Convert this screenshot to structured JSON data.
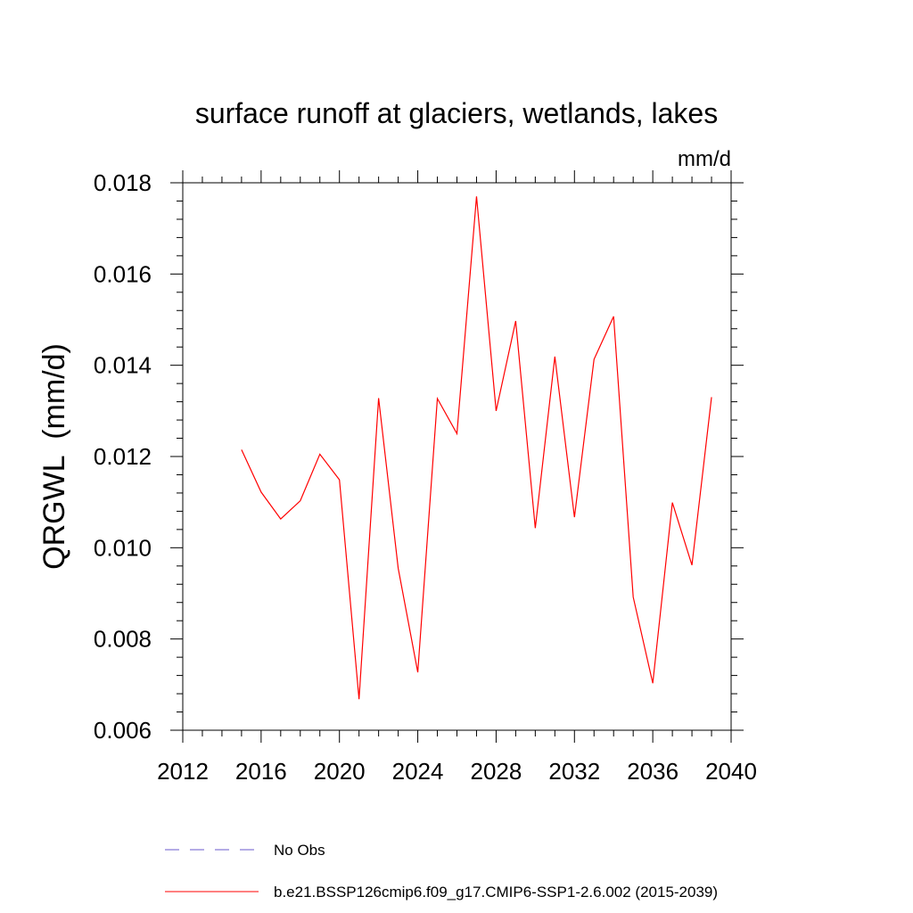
{
  "chart_data": {
    "type": "line",
    "title": "surface runoff at glaciers, wetlands, lakes",
    "units_label": "mm/d",
    "ylabel": "QRGWL  (mm/d)",
    "xlabel": "",
    "xlim": [
      2012,
      2040
    ],
    "ylim": [
      0.006,
      0.018
    ],
    "x_ticks": [
      2012,
      2016,
      2020,
      2024,
      2028,
      2032,
      2036,
      2040
    ],
    "x_tick_labels": [
      "2012",
      "2016",
      "2020",
      "2024",
      "2028",
      "2032",
      "2036",
      "2040"
    ],
    "y_ticks": [
      0.006,
      0.008,
      0.01,
      0.012,
      0.014,
      0.016,
      0.018
    ],
    "y_tick_labels": [
      "0.006",
      "0.008",
      "0.010",
      "0.012",
      "0.014",
      "0.016",
      "0.018"
    ],
    "grid": false,
    "legend_position": "bottom",
    "series": [
      {
        "name": "No Obs",
        "color": "#6a5acd",
        "dashed": true,
        "x": [],
        "values": []
      },
      {
        "name": "b.e21.BSSP126cmip6.f09_g17.CMIP6-SSP1-2.6.002 (2015-2039)",
        "color": "#ff0000",
        "dashed": false,
        "x": [
          2015,
          2016,
          2017,
          2018,
          2019,
          2020,
          2021,
          2022,
          2023,
          2024,
          2025,
          2026,
          2027,
          2028,
          2029,
          2030,
          2031,
          2032,
          2033,
          2034,
          2035,
          2036,
          2037,
          2038,
          2039
        ],
        "values": [
          0.01215,
          0.01122,
          0.01063,
          0.01103,
          0.01205,
          0.01149,
          0.00668,
          0.01328,
          0.00955,
          0.00727,
          0.01327,
          0.0125,
          0.0177,
          0.013,
          0.01497,
          0.01043,
          0.01419,
          0.01067,
          0.01413,
          0.01507,
          0.00892,
          0.00703,
          0.01099,
          0.00962,
          0.0133
        ]
      }
    ]
  }
}
